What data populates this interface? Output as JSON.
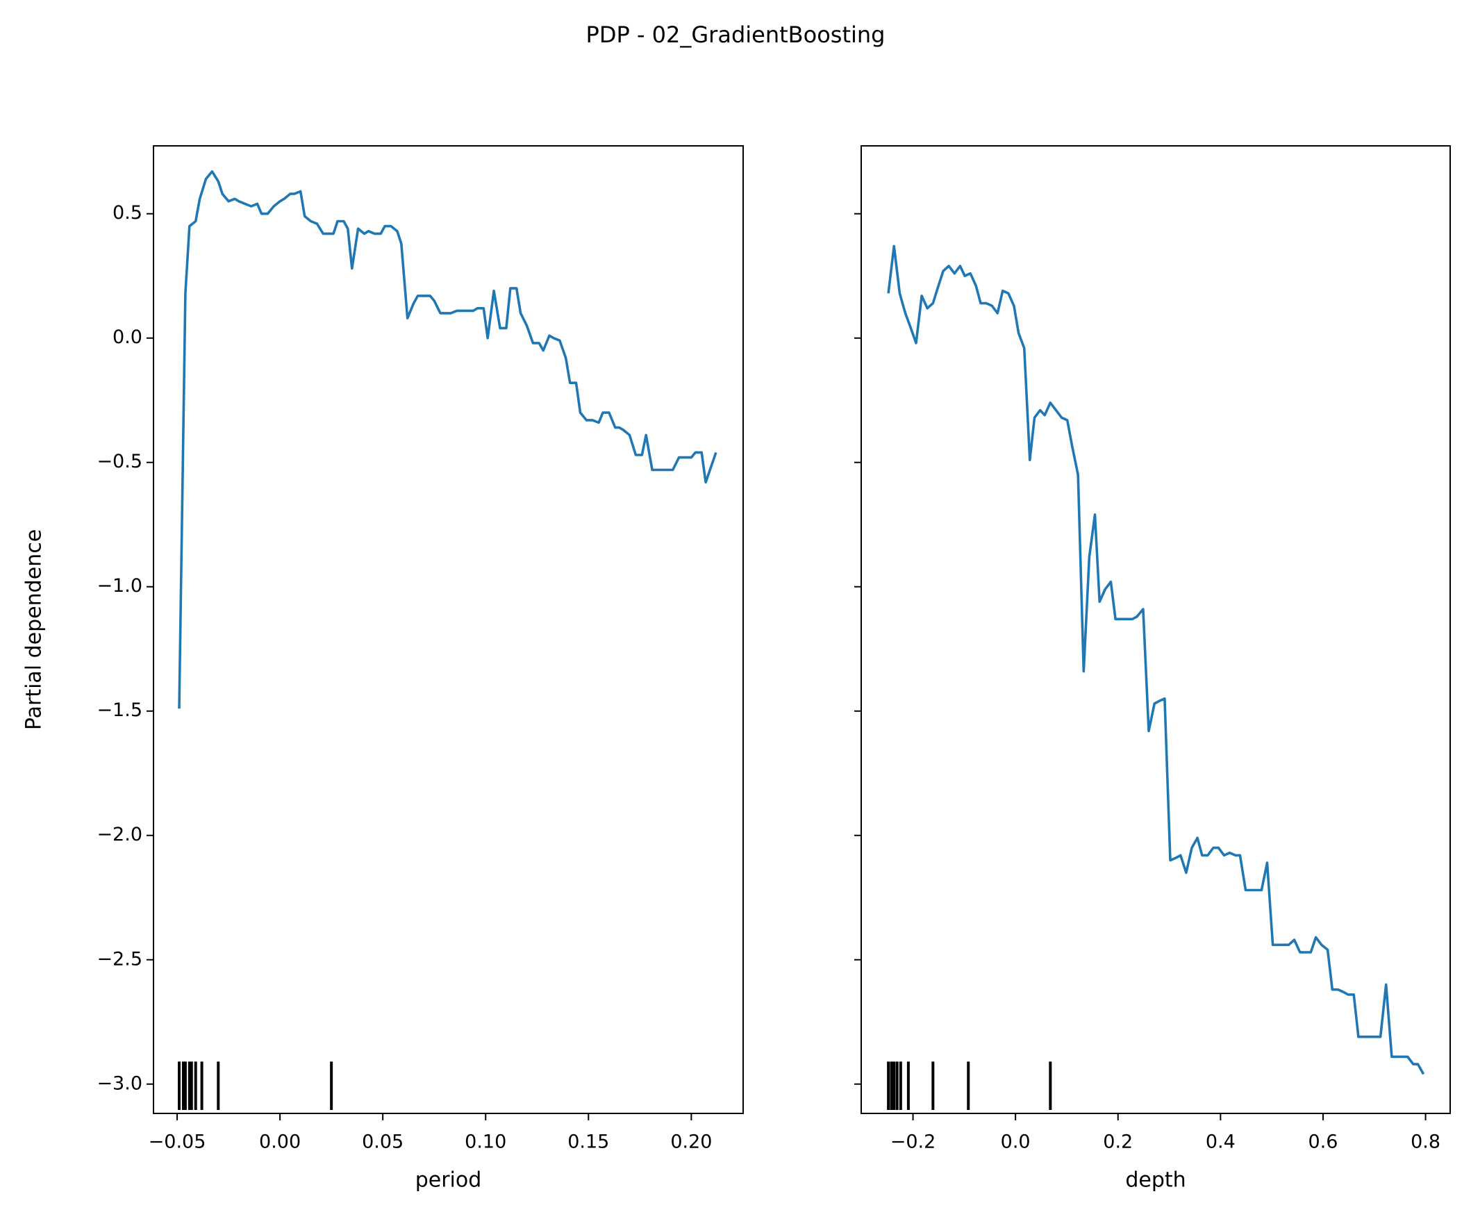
{
  "title": "PDP - 02_GradientBoosting",
  "chart_data": [
    {
      "type": "line",
      "xlabel": "period",
      "ylabel": "Partial dependence",
      "color": "#1f77b4",
      "x": [
        -0.049,
        -0.046,
        -0.044,
        -0.041,
        -0.039,
        -0.036,
        -0.033,
        -0.03,
        -0.028,
        -0.025,
        -0.022,
        -0.02,
        -0.017,
        -0.014,
        -0.011,
        -0.009,
        -0.006,
        -0.003,
        0.0,
        0.002,
        0.005,
        0.007,
        0.01,
        0.012,
        0.015,
        0.018,
        0.021,
        0.023,
        0.026,
        0.028,
        0.031,
        0.033,
        0.035,
        0.038,
        0.041,
        0.043,
        0.046,
        0.049,
        0.051,
        0.054,
        0.057,
        0.059,
        0.062,
        0.065,
        0.067,
        0.07,
        0.073,
        0.075,
        0.078,
        0.08,
        0.083,
        0.086,
        0.089,
        0.091,
        0.094,
        0.096,
        0.099,
        0.101,
        0.104,
        0.107,
        0.11,
        0.112,
        0.115,
        0.117,
        0.12,
        0.123,
        0.126,
        0.128,
        0.131,
        0.133,
        0.136,
        0.139,
        0.141,
        0.144,
        0.146,
        0.149,
        0.152,
        0.155,
        0.157,
        0.16,
        0.163,
        0.165,
        0.167,
        0.17,
        0.173,
        0.176,
        0.178,
        0.181,
        0.183,
        0.186,
        0.189,
        0.191,
        0.194,
        0.197,
        0.2,
        0.202,
        0.205,
        0.207,
        0.212
      ],
      "values": [
        -1.49,
        0.18,
        0.45,
        0.47,
        0.56,
        0.64,
        0.67,
        0.63,
        0.58,
        0.55,
        0.56,
        0.55,
        0.54,
        0.53,
        0.54,
        0.5,
        0.5,
        0.53,
        0.55,
        0.56,
        0.58,
        0.58,
        0.59,
        0.49,
        0.47,
        0.46,
        0.42,
        0.42,
        0.42,
        0.47,
        0.47,
        0.44,
        0.28,
        0.44,
        0.42,
        0.43,
        0.42,
        0.42,
        0.45,
        0.45,
        0.43,
        0.38,
        0.08,
        0.14,
        0.17,
        0.17,
        0.17,
        0.15,
        0.1,
        0.1,
        0.1,
        0.11,
        0.11,
        0.11,
        0.11,
        0.12,
        0.12,
        0.0,
        0.19,
        0.04,
        0.04,
        0.2,
        0.2,
        0.1,
        0.05,
        -0.02,
        -0.02,
        -0.05,
        0.01,
        0.0,
        -0.01,
        -0.08,
        -0.18,
        -0.18,
        -0.3,
        -0.33,
        -0.33,
        -0.34,
        -0.3,
        -0.3,
        -0.36,
        -0.36,
        -0.37,
        -0.39,
        -0.47,
        -0.47,
        -0.39,
        -0.53,
        -0.53,
        -0.53,
        -0.53,
        -0.53,
        -0.48,
        -0.48,
        -0.48,
        -0.46,
        -0.46,
        -0.58,
        -0.46
      ],
      "rug": [
        -0.049,
        -0.047,
        -0.046,
        -0.044,
        -0.043,
        -0.041,
        -0.038,
        -0.03,
        0.025
      ],
      "xlim": [
        -0.0615,
        0.2252
      ],
      "ylim": [
        -3.118,
        0.773
      ],
      "xticks": [
        {
          "value": -0.05,
          "label": "−0.05"
        },
        {
          "value": 0,
          "label": "0.00"
        },
        0.05,
        {
          "value": 0.1,
          "label": "0.10"
        },
        0.15,
        {
          "value": 0.2,
          "label": "0.20"
        }
      ],
      "yticks": [
        {
          "value": -3,
          "label": "−3.0"
        },
        {
          "value": -2.5,
          "label": "−2.5"
        },
        {
          "value": -2,
          "label": "−2.0"
        },
        {
          "value": -1.5,
          "label": "−1.5"
        },
        {
          "value": -1,
          "label": "−1.0"
        },
        {
          "value": -0.5,
          "label": "−0.5"
        },
        {
          "value": 0,
          "label": "0.0"
        },
        0.5
      ]
    },
    {
      "type": "line",
      "xlabel": "depth",
      "color": "#1f77b4",
      "x": [
        -0.248,
        -0.237,
        -0.226,
        -0.215,
        -0.206,
        -0.194,
        -0.183,
        -0.172,
        -0.161,
        -0.152,
        -0.141,
        -0.13,
        -0.119,
        -0.108,
        -0.099,
        -0.088,
        -0.077,
        -0.068,
        -0.057,
        -0.046,
        -0.035,
        -0.025,
        -0.014,
        -0.003,
        0.006,
        0.017,
        0.028,
        0.037,
        0.048,
        0.057,
        0.068,
        0.079,
        0.09,
        0.101,
        0.111,
        0.122,
        0.133,
        0.144,
        0.155,
        0.164,
        0.175,
        0.186,
        0.195,
        0.206,
        0.217,
        0.228,
        0.237,
        0.249,
        0.26,
        0.271,
        0.28,
        0.291,
        0.302,
        0.313,
        0.322,
        0.333,
        0.344,
        0.355,
        0.364,
        0.375,
        0.386,
        0.396,
        0.407,
        0.418,
        0.429,
        0.438,
        0.449,
        0.46,
        0.469,
        0.48,
        0.491,
        0.502,
        0.513,
        0.524,
        0.533,
        0.544,
        0.555,
        0.566,
        0.576,
        0.586,
        0.597,
        0.609,
        0.618,
        0.629,
        0.64,
        0.649,
        0.66,
        0.669,
        0.68,
        0.692,
        0.703,
        0.712,
        0.723,
        0.734,
        0.743,
        0.754,
        0.765,
        0.776,
        0.785,
        0.796
      ],
      "values": [
        0.18,
        0.37,
        0.18,
        0.1,
        0.05,
        -0.02,
        0.17,
        0.12,
        0.14,
        0.2,
        0.27,
        0.29,
        0.26,
        0.29,
        0.25,
        0.26,
        0.21,
        0.14,
        0.14,
        0.13,
        0.1,
        0.19,
        0.18,
        0.13,
        0.02,
        -0.04,
        -0.49,
        -0.32,
        -0.29,
        -0.31,
        -0.26,
        -0.29,
        -0.32,
        -0.33,
        -0.44,
        -0.55,
        -1.34,
        -0.88,
        -0.71,
        -1.06,
        -1.01,
        -0.98,
        -1.13,
        -1.13,
        -1.13,
        -1.13,
        -1.12,
        -1.09,
        -1.58,
        -1.47,
        -1.46,
        -1.45,
        -2.1,
        -2.09,
        -2.08,
        -2.15,
        -2.05,
        -2.01,
        -2.08,
        -2.08,
        -2.05,
        -2.05,
        -2.08,
        -2.07,
        -2.08,
        -2.08,
        -2.22,
        -2.22,
        -2.22,
        -2.22,
        -2.11,
        -2.44,
        -2.44,
        -2.44,
        -2.44,
        -2.42,
        -2.47,
        -2.47,
        -2.47,
        -2.41,
        -2.44,
        -2.46,
        -2.62,
        -2.62,
        -2.63,
        -2.64,
        -2.64,
        -2.81,
        -2.81,
        -2.81,
        -2.81,
        -2.81,
        -2.6,
        -2.89,
        -2.89,
        -2.89,
        -2.89,
        -2.92,
        -2.92,
        -2.96
      ],
      "rug": [
        -0.248,
        -0.242,
        -0.237,
        -0.231,
        -0.224,
        -0.209,
        -0.161,
        -0.092,
        0.068
      ],
      "xlim": [
        -0.301,
        0.848
      ],
      "ylim": [
        -3.118,
        0.773
      ],
      "xticks": [
        {
          "value": -0.2,
          "label": "−0.2"
        },
        {
          "value": 0,
          "label": "0.0"
        },
        0.2,
        0.4,
        0.6,
        0.8
      ],
      "yticks": [
        -3,
        -2.5,
        -2,
        -1.5,
        -1,
        -0.5,
        0,
        0.5
      ]
    }
  ]
}
